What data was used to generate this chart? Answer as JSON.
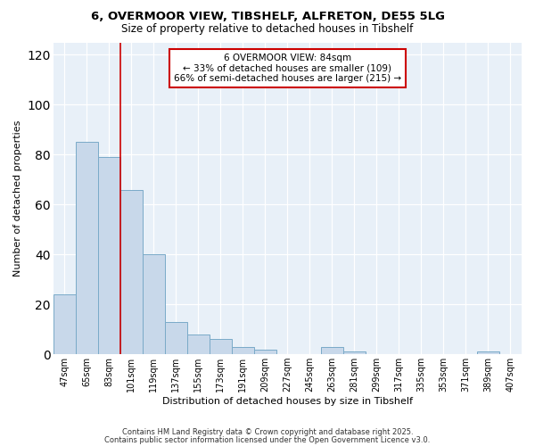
{
  "title_line1": "6, OVERMOOR VIEW, TIBSHELF, ALFRETON, DE55 5LG",
  "title_line2": "Size of property relative to detached houses in Tibshelf",
  "xlabel": "Distribution of detached houses by size in Tibshelf",
  "ylabel": "Number of detached properties",
  "bar_color": "#c8d8ea",
  "bar_edge_color": "#7aaac8",
  "categories": [
    "47sqm",
    "65sqm",
    "83sqm",
    "101sqm",
    "119sqm",
    "137sqm",
    "155sqm",
    "173sqm",
    "191sqm",
    "209sqm",
    "227sqm",
    "245sqm",
    "263sqm",
    "281sqm",
    "299sqm",
    "317sqm",
    "335sqm",
    "353sqm",
    "371sqm",
    "389sqm",
    "407sqm"
  ],
  "values": [
    24,
    85,
    79,
    66,
    40,
    13,
    8,
    6,
    3,
    2,
    0,
    0,
    3,
    1,
    0,
    0,
    0,
    0,
    0,
    1,
    0
  ],
  "vline_index": 2,
  "vline_color": "#cc0000",
  "annotation_text": "6 OVERMOOR VIEW: 84sqm\n← 33% of detached houses are smaller (109)\n66% of semi-detached houses are larger (215) →",
  "annotation_box_facecolor": "#ffffff",
  "annotation_box_edgecolor": "#cc0000",
  "ylim": [
    0,
    125
  ],
  "yticks": [
    0,
    20,
    40,
    60,
    80,
    100,
    120
  ],
  "bg_color": "#e8f0f8",
  "fig_bg_color": "#ffffff",
  "footer_line1": "Contains HM Land Registry data © Crown copyright and database right 2025.",
  "footer_line2": "Contains public sector information licensed under the Open Government Licence v3.0."
}
